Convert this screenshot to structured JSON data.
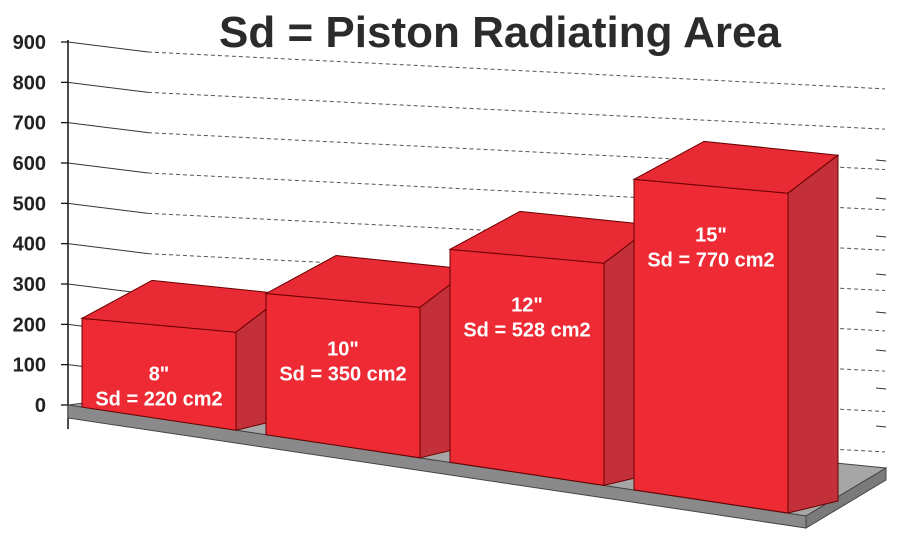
{
  "chart_data": {
    "type": "bar",
    "title": "Sd = Piston Radiating Area",
    "xlabel": "",
    "ylabel": "",
    "ylim": [
      0,
      900
    ],
    "yticks": [
      "0",
      "100",
      "200",
      "300",
      "400",
      "500",
      "600",
      "700",
      "800",
      "900"
    ],
    "grid": true,
    "bar_color": "#ee2b34",
    "bars": [
      {
        "line1": "8\"",
        "line2": "Sd = 220 cm2",
        "value": 220
      },
      {
        "line1": "10\"",
        "line2": "Sd = 350 cm2",
        "value": 350
      },
      {
        "line1": "12\"",
        "line2": "Sd = 528 cm2",
        "value": 528
      },
      {
        "line1": "15\"",
        "line2": "Sd = 770 cm2",
        "value": 770
      }
    ]
  }
}
